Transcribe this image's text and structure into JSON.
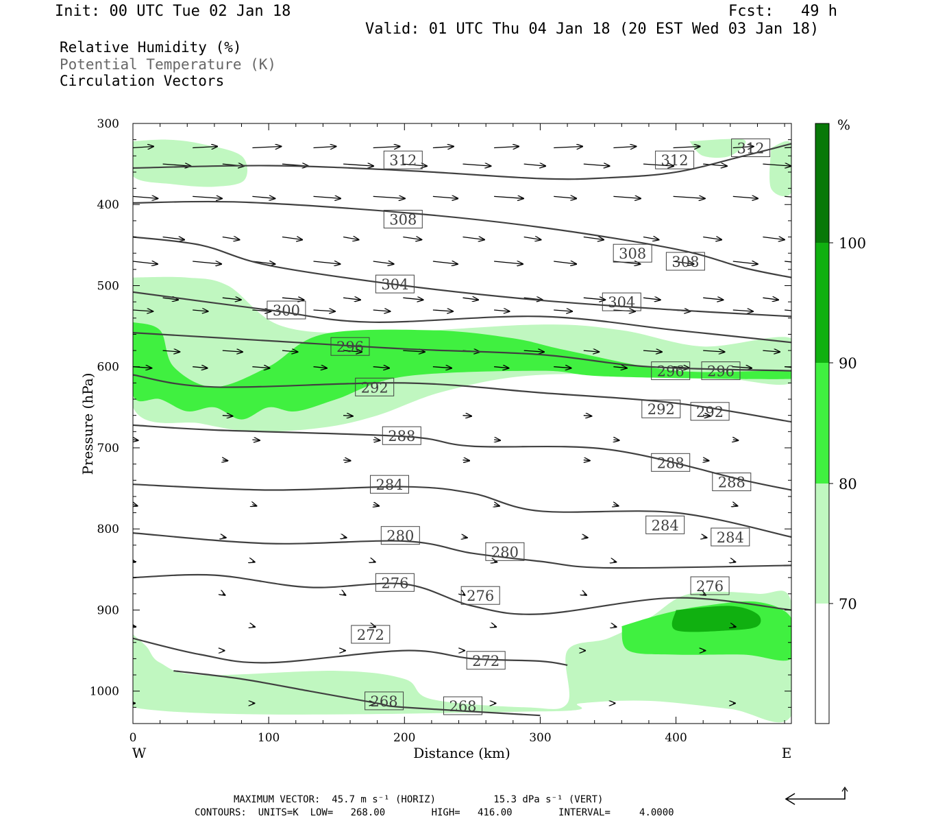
{
  "header": {
    "init": "Init: 00 UTC Tue 02 Jan 18",
    "fcst": "Fcst:   49 h",
    "valid": "Valid: 01 UTC Thu 04 Jan 18 (20 EST Wed 03 Jan 18)"
  },
  "legend": {
    "rh": "Relative Humidity (%)",
    "theta": "Potential Temperature (K)",
    "vectors": "Circulation Vectors"
  },
  "footer": {
    "max_vector": "MAXIMUM VECTOR:  45.7 m s⁻¹ (HORIZ)          15.3 dPa s⁻¹ (VERT)",
    "contours": "CONTOURS:  UNITS=K  LOW=   268.00        HIGH=   416.00        INTERVAL=     4.0000"
  },
  "colors": {
    "rh_70": "#c0f7c0",
    "rh_80": "#40f040",
    "rh_90": "#10b010",
    "rh_100": "#087808",
    "contour": "#404040"
  },
  "chart_data": {
    "type": "contour",
    "xlabel": "Distance (km)",
    "ylabel": "Pressure (hPa)",
    "xlim": [
      0,
      485
    ],
    "ylim": [
      1040,
      300
    ],
    "y_scale": "linear",
    "x_ticks": [
      0,
      100,
      200,
      300,
      400
    ],
    "y_ticks": [
      300,
      400,
      500,
      600,
      700,
      800,
      900,
      1000
    ],
    "west_label": "W",
    "east_label": "E",
    "colorbar": {
      "unit": "%",
      "levels": [
        70,
        80,
        90,
        100
      ]
    },
    "contour_levels": [
      268,
      272,
      276,
      280,
      284,
      288,
      292,
      296,
      300,
      304,
      308,
      312
    ],
    "isentropes": [
      {
        "level": 312,
        "points": [
          [
            0,
            355
          ],
          [
            100,
            352
          ],
          [
            200,
            358
          ],
          [
            300,
            368
          ],
          [
            350,
            367
          ],
          [
            400,
            360
          ],
          [
            450,
            340
          ],
          [
            485,
            325
          ]
        ]
      },
      {
        "level": 308,
        "points": [
          [
            0,
            398
          ],
          [
            80,
            397
          ],
          [
            200,
            410
          ],
          [
            300,
            428
          ],
          [
            400,
            455
          ],
          [
            450,
            478
          ],
          [
            485,
            490
          ]
        ]
      },
      {
        "level": 304,
        "points": [
          [
            0,
            440
          ],
          [
            50,
            450
          ],
          [
            100,
            475
          ],
          [
            200,
            500
          ],
          [
            300,
            518
          ],
          [
            400,
            530
          ],
          [
            485,
            538
          ]
        ]
      },
      {
        "level": 300,
        "points": [
          [
            0,
            508
          ],
          [
            100,
            530
          ],
          [
            175,
            545
          ],
          [
            300,
            538
          ],
          [
            400,
            555
          ],
          [
            485,
            570
          ]
        ]
      },
      {
        "level": 296,
        "points": [
          [
            0,
            558
          ],
          [
            100,
            568
          ],
          [
            200,
            578
          ],
          [
            300,
            585
          ],
          [
            380,
            600
          ],
          [
            485,
            605
          ]
        ]
      },
      {
        "level": 292,
        "points": [
          [
            0,
            610
          ],
          [
            60,
            625
          ],
          [
            200,
            620
          ],
          [
            300,
            632
          ],
          [
            400,
            645
          ],
          [
            485,
            668
          ]
        ]
      },
      {
        "level": 288,
        "points": [
          [
            0,
            672
          ],
          [
            60,
            678
          ],
          [
            200,
            686
          ],
          [
            250,
            698
          ],
          [
            350,
            702
          ],
          [
            450,
            740
          ],
          [
            485,
            752
          ]
        ]
      },
      {
        "level": 284,
        "points": [
          [
            0,
            745
          ],
          [
            100,
            752
          ],
          [
            200,
            748
          ],
          [
            250,
            756
          ],
          [
            300,
            778
          ],
          [
            400,
            780
          ],
          [
            485,
            810
          ]
        ]
      },
      {
        "level": 280,
        "points": [
          [
            0,
            805
          ],
          [
            100,
            818
          ],
          [
            200,
            815
          ],
          [
            250,
            830
          ],
          [
            300,
            840
          ],
          [
            350,
            848
          ],
          [
            485,
            845
          ]
        ]
      },
      {
        "level": 276,
        "points": [
          [
            0,
            860
          ],
          [
            60,
            857
          ],
          [
            130,
            872
          ],
          [
            200,
            868
          ],
          [
            250,
            895
          ],
          [
            300,
            905
          ],
          [
            400,
            885
          ],
          [
            485,
            900
          ]
        ]
      },
      {
        "level": 272,
        "points": [
          [
            0,
            935
          ],
          [
            50,
            955
          ],
          [
            100,
            965
          ],
          [
            200,
            950
          ],
          [
            250,
            960
          ],
          [
            300,
            963
          ],
          [
            320,
            968
          ]
        ]
      },
      {
        "level": 268,
        "points": [
          [
            30,
            975
          ],
          [
            80,
            985
          ],
          [
            130,
            1000
          ],
          [
            180,
            1015
          ],
          [
            200,
            1020
          ],
          [
            300,
            1030
          ]
        ]
      }
    ],
    "contour_labels": [
      {
        "text": "312",
        "x": 199,
        "p": 345
      },
      {
        "text": "312",
        "x": 399,
        "p": 345
      },
      {
        "text": "312",
        "x": 455,
        "p": 330
      },
      {
        "text": "308",
        "x": 199,
        "p": 418
      },
      {
        "text": "308",
        "x": 368,
        "p": 460
      },
      {
        "text": "308",
        "x": 407,
        "p": 470
      },
      {
        "text": "304",
        "x": 193,
        "p": 498
      },
      {
        "text": "304",
        "x": 360,
        "p": 520
      },
      {
        "text": "300",
        "x": 113,
        "p": 530
      },
      {
        "text": "296",
        "x": 160,
        "p": 575
      },
      {
        "text": "296",
        "x": 396,
        "p": 605
      },
      {
        "text": "296",
        "x": 433,
        "p": 605
      },
      {
        "text": "292",
        "x": 178,
        "p": 625
      },
      {
        "text": "292",
        "x": 389,
        "p": 652
      },
      {
        "text": "292",
        "x": 425,
        "p": 655
      },
      {
        "text": "288",
        "x": 198,
        "p": 685
      },
      {
        "text": "288",
        "x": 396,
        "p": 718
      },
      {
        "text": "288",
        "x": 441,
        "p": 742
      },
      {
        "text": "284",
        "x": 189,
        "p": 745
      },
      {
        "text": "284",
        "x": 392,
        "p": 795
      },
      {
        "text": "284",
        "x": 440,
        "p": 810
      },
      {
        "text": "280",
        "x": 197,
        "p": 808
      },
      {
        "text": "280",
        "x": 274,
        "p": 828
      },
      {
        "text": "276",
        "x": 193,
        "p": 866
      },
      {
        "text": "276",
        "x": 256,
        "p": 882
      },
      {
        "text": "276",
        "x": 425,
        "p": 870
      },
      {
        "text": "272",
        "x": 175,
        "p": 930
      },
      {
        "text": "272",
        "x": 260,
        "p": 962
      },
      {
        "text": "268",
        "x": 185,
        "p": 1012
      },
      {
        "text": "268",
        "x": 243,
        "p": 1018
      }
    ],
    "rh_regions": [
      {
        "min": 70,
        "points": [
          [
            0,
            322
          ],
          [
            25,
            320
          ],
          [
            50,
            325
          ],
          [
            80,
            340
          ],
          [
            82,
            370
          ],
          [
            60,
            378
          ],
          [
            30,
            375
          ],
          [
            0,
            365
          ]
        ]
      },
      {
        "min": 70,
        "points": [
          [
            410,
            322
          ],
          [
            450,
            320
          ],
          [
            440,
            340
          ],
          [
            420,
            340
          ]
        ]
      },
      {
        "min": 70,
        "points": [
          [
            470,
            330
          ],
          [
            485,
            325
          ],
          [
            485,
            385
          ],
          [
            470,
            380
          ]
        ]
      },
      {
        "min": 70,
        "points": [
          [
            0,
            490
          ],
          [
            40,
            490
          ],
          [
            70,
            500
          ],
          [
            110,
            550
          ],
          [
            180,
            558
          ],
          [
            300,
            548
          ],
          [
            360,
            555
          ],
          [
            420,
            575
          ],
          [
            485,
            565
          ],
          [
            485,
            620
          ],
          [
            420,
            612
          ],
          [
            300,
            610
          ],
          [
            230,
            630
          ],
          [
            180,
            660
          ],
          [
            140,
            675
          ],
          [
            90,
            680
          ],
          [
            50,
            670
          ],
          [
            0,
            650
          ]
        ]
      },
      {
        "min": 80,
        "points": [
          [
            0,
            545
          ],
          [
            20,
            555
          ],
          [
            30,
            600
          ],
          [
            60,
            625
          ],
          [
            100,
            600
          ],
          [
            140,
            560
          ],
          [
            220,
            555
          ],
          [
            280,
            565
          ],
          [
            320,
            580
          ],
          [
            400,
            605
          ],
          [
            485,
            605
          ],
          [
            485,
            615
          ],
          [
            350,
            612
          ],
          [
            300,
            605
          ],
          [
            200,
            612
          ],
          [
            150,
            640
          ],
          [
            120,
            655
          ],
          [
            100,
            650
          ],
          [
            80,
            665
          ],
          [
            60,
            650
          ],
          [
            40,
            655
          ],
          [
            20,
            640
          ],
          [
            0,
            635
          ]
        ]
      },
      {
        "min": 70,
        "points": [
          [
            0,
            930
          ],
          [
            10,
            945
          ],
          [
            20,
            965
          ],
          [
            50,
            980
          ],
          [
            150,
            975
          ],
          [
            200,
            985
          ],
          [
            220,
            1010
          ],
          [
            290,
            1020
          ],
          [
            320,
            1015
          ],
          [
            320,
            950
          ],
          [
            350,
            935
          ],
          [
            380,
            910
          ],
          [
            410,
            880
          ],
          [
            460,
            880
          ],
          [
            485,
            890
          ],
          [
            485,
            1030
          ],
          [
            440,
            1022
          ],
          [
            380,
            1012
          ],
          [
            330,
            1015
          ],
          [
            300,
            1025
          ],
          [
            0,
            1020
          ]
        ]
      },
      {
        "min": 80,
        "points": [
          [
            360,
            920
          ],
          [
            390,
            905
          ],
          [
            420,
            895
          ],
          [
            460,
            890
          ],
          [
            485,
            910
          ],
          [
            485,
            960
          ],
          [
            450,
            955
          ],
          [
            400,
            955
          ],
          [
            365,
            950
          ]
        ]
      },
      {
        "min": 90,
        "points": [
          [
            400,
            900
          ],
          [
            440,
            895
          ],
          [
            460,
            905
          ],
          [
            460,
            920
          ],
          [
            440,
            925
          ],
          [
            400,
            925
          ]
        ]
      }
    ],
    "vectors_note": "Circulation vectors (horizontal wind + vertical motion) along cross-section"
  }
}
